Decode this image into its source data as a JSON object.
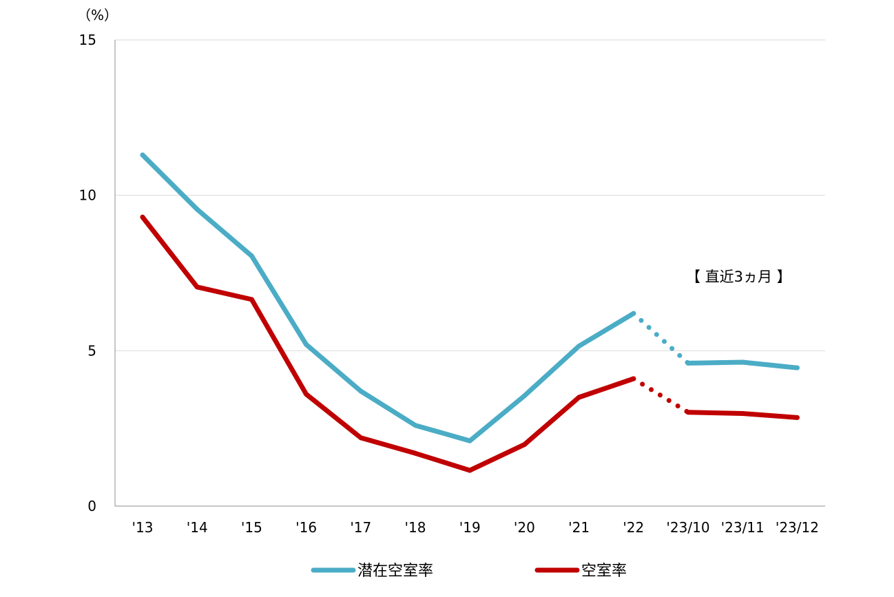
{
  "chart_data": {
    "type": "line",
    "title": "",
    "xlabel": "",
    "ylabel": "（%）",
    "ylim": [
      0,
      15
    ],
    "y_ticks": [
      0,
      5,
      10,
      15
    ],
    "grid": "horizontal",
    "legend_position": "bottom",
    "categories": [
      "'13",
      "'14",
      "'15",
      "'16",
      "'17",
      "'18",
      "'19",
      "'20",
      "'21",
      "'22",
      "'23/10",
      "'23/11",
      "'23/12"
    ],
    "series": [
      {
        "name": "潜在空室率",
        "color": "#4BACC6",
        "values": [
          11.3,
          9.55,
          8.05,
          5.2,
          3.7,
          2.6,
          2.1,
          3.55,
          5.15,
          6.2,
          4.6,
          4.63,
          4.45
        ]
      },
      {
        "name": "空室率",
        "color": "#C00000",
        "values": [
          9.3,
          7.05,
          6.65,
          3.6,
          2.2,
          1.7,
          1.15,
          1.98,
          3.5,
          4.1,
          3.02,
          2.98,
          2.85
        ]
      }
    ],
    "dotted_segment": {
      "from": "'22",
      "to": "'23/10"
    },
    "annotation": "【 直近3ヵ月 】"
  }
}
